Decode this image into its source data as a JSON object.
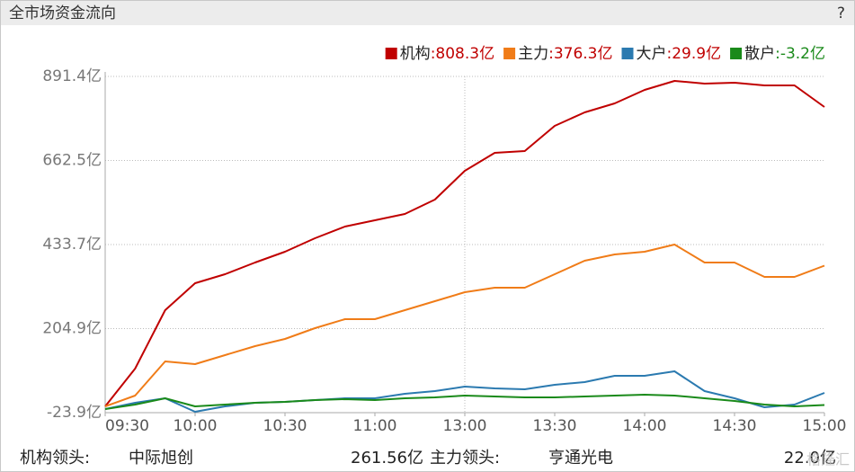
{
  "header": {
    "title": "全市场资金流向",
    "help": "?"
  },
  "chart_data": {
    "type": "line",
    "x": [
      0,
      10,
      20,
      30,
      40,
      50,
      60,
      70,
      80,
      90,
      100,
      110,
      120,
      130,
      140,
      150,
      160,
      170,
      180,
      190,
      200,
      210,
      220,
      230,
      240
    ],
    "xlim": [
      0,
      240
    ],
    "xticks": [
      {
        "value": 0,
        "label": "09:30"
      },
      {
        "value": 30,
        "label": "10:00"
      },
      {
        "value": 60,
        "label": "10:30"
      },
      {
        "value": 90,
        "label": "11:00"
      },
      {
        "value": 120,
        "label": "13:00"
      },
      {
        "value": 150,
        "label": "13:30"
      },
      {
        "value": 180,
        "label": "14:00"
      },
      {
        "value": 210,
        "label": "14:30"
      },
      {
        "value": 240,
        "label": "15:00"
      }
    ],
    "x_divider": 120,
    "ylim": [
      -23.9,
      891.4
    ],
    "yticks": [
      {
        "value": -23.9,
        "label": "-23.9亿"
      },
      {
        "value": 204.9,
        "label": "204.9亿"
      },
      {
        "value": 433.7,
        "label": "433.7亿"
      },
      {
        "value": 662.5,
        "label": "662.5亿"
      },
      {
        "value": 891.4,
        "label": "891.4亿"
      }
    ],
    "grid": true,
    "legend": "top-right",
    "series": [
      {
        "name": "机构",
        "color": "#c00000",
        "legend_value": ":808.3亿",
        "value_color": "#c00000",
        "values": [
          -6.8,
          96.0,
          255.1,
          328.5,
          353.0,
          384.8,
          414.2,
          450.9,
          482.7,
          499.8,
          517.0,
          556.1,
          634.4,
          683.4,
          688.3,
          756.8,
          793.5,
          818.0,
          854.7,
          879.2,
          871.8,
          874.3,
          866.9,
          866.9,
          808.3
        ]
      },
      {
        "name": "主力",
        "color": "#f07c18",
        "legend_value": ":376.3亿",
        "value_color": "#c00000",
        "values": [
          -6.8,
          22.6,
          115.6,
          108.3,
          132.7,
          157.2,
          176.8,
          206.1,
          230.6,
          230.6,
          255.1,
          279.6,
          304.0,
          316.3,
          316.3,
          353.0,
          389.7,
          406.8,
          414.2,
          433.8,
          384.8,
          384.8,
          345.6,
          345.6,
          376.3
        ]
      },
      {
        "name": "大户",
        "color": "#2b7ab0",
        "legend_value": ":29.9亿",
        "value_color": "#c00000",
        "values": [
          -14.1,
          3.0,
          15.3,
          -21.5,
          -6.8,
          3.0,
          5.5,
          10.4,
          15.3,
          15.3,
          27.6,
          34.9,
          47.1,
          42.2,
          39.8,
          52.0,
          59.4,
          76.5,
          76.5,
          88.7,
          34.9,
          15.3,
          -9.2,
          -1.9,
          29.9
        ]
      },
      {
        "name": "散户",
        "color": "#1a8a1a",
        "legend_value": ":-3.2亿",
        "value_color": "#1a8a1a",
        "values": [
          -14.1,
          -1.9,
          15.3,
          -6.8,
          -1.9,
          3.0,
          5.5,
          10.4,
          12.8,
          10.4,
          15.3,
          17.7,
          22.6,
          20.2,
          17.7,
          17.7,
          20.2,
          22.6,
          25.1,
          22.6,
          15.3,
          8.0,
          -1.9,
          -6.8,
          -3.2
        ]
      }
    ]
  },
  "footer": {
    "inst_label": "机构领头:",
    "inst_stock": "中际旭创",
    "inst_value": "261.56亿",
    "main_label": "主力领头:",
    "main_stock": "亨通光电",
    "main_value": "22.0亿",
    "watermark": "格隆汇"
  }
}
